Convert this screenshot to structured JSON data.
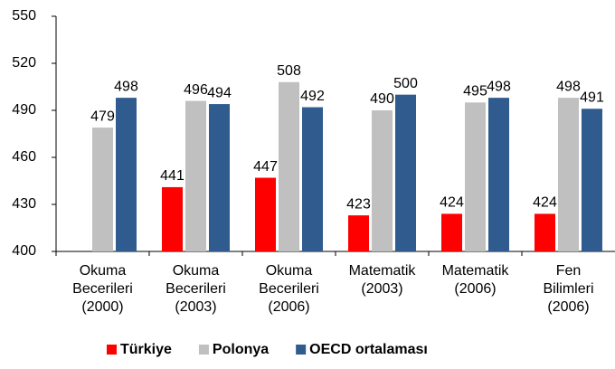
{
  "chart_data": {
    "type": "bar",
    "categories": [
      [
        "Okuma",
        "Becerileri",
        "(2000)"
      ],
      [
        "Okuma",
        "Becerileri",
        "(2003)"
      ],
      [
        "Okuma",
        "Becerileri",
        "(2006)"
      ],
      [
        "Matematik",
        "(2003)"
      ],
      [
        "Matematik",
        "(2006)"
      ],
      [
        "Fen",
        "Bilimleri",
        "(2006)"
      ]
    ],
    "series": [
      {
        "name": "Türkiye",
        "color": "#ff0000",
        "values": [
          null,
          441,
          447,
          423,
          424,
          424
        ]
      },
      {
        "name": "Polonya",
        "color": "#c0c0c0",
        "values": [
          479,
          496,
          508,
          490,
          495,
          498
        ]
      },
      {
        "name": "OECD ortalaması",
        "color": "#2f5b8e",
        "values": [
          498,
          494,
          492,
          500,
          498,
          491
        ]
      }
    ],
    "ylim": [
      400,
      550
    ],
    "yticks": [
      400,
      430,
      460,
      490,
      520,
      550
    ],
    "grid": false
  }
}
